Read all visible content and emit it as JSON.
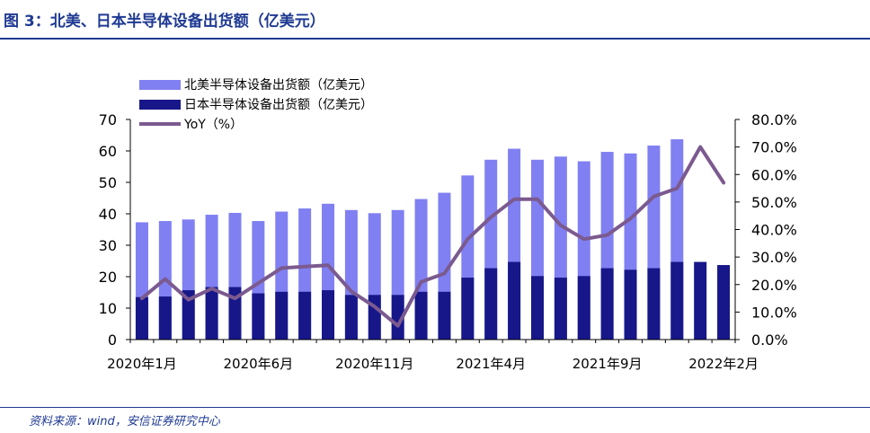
{
  "figure": {
    "title": "图 3：北美、日本半导体设备出货额（亿美元）",
    "source": "资料来源：wind，安信证券研究中心"
  },
  "colors": {
    "north_america": "#8080f2",
    "japan": "#17178a",
    "yoy": "#7b5a8f",
    "title": "#1f3a93",
    "axis": "#000000"
  },
  "chart_data": {
    "type": "bar",
    "stacked": "overlay",
    "x": [
      "2020年1月",
      "2020年2月",
      "2020年3月",
      "2020年4月",
      "2020年5月",
      "2020年6月",
      "2020年7月",
      "2020年8月",
      "2020年9月",
      "2020年10月",
      "2020年11月",
      "2020年12月",
      "2021年1月",
      "2021年2月",
      "2021年3月",
      "2021年4月",
      "2021年5月",
      "2021年6月",
      "2021年7月",
      "2021年8月",
      "2021年9月",
      "2021年10月",
      "2021年11月",
      "2021年12月",
      "2022年1月",
      "2022年2月"
    ],
    "x_tick_labels": [
      {
        "index": 0,
        "label": "2020年1月"
      },
      {
        "index": 5,
        "label": "2020年6月"
      },
      {
        "index": 10,
        "label": "2020年11月"
      },
      {
        "index": 15,
        "label": "2021年4月"
      },
      {
        "index": 20,
        "label": "2021年9月"
      },
      {
        "index": 25,
        "label": "2022年2月"
      }
    ],
    "series": [
      {
        "name": "北美半导体设备出货额（亿美元）",
        "kind": "bar",
        "axis": "left",
        "values": [
          37.3,
          37.7,
          38.2,
          39.7,
          40.3,
          37.7,
          40.7,
          41.7,
          43.2,
          41.2,
          40.2,
          41.2,
          44.7,
          46.7,
          52.2,
          57.2,
          60.7,
          57.2,
          58.2,
          56.7,
          59.7,
          59.2,
          61.7,
          63.7,
          null,
          null
        ]
      },
      {
        "name": "日本半导体设备出货额（亿美元）",
        "kind": "bar",
        "axis": "left",
        "values": [
          13.5,
          13.7,
          15.7,
          16.7,
          16.7,
          14.7,
          15.2,
          15.2,
          15.7,
          14.2,
          14.2,
          14.2,
          15.2,
          15.2,
          19.7,
          22.7,
          24.7,
          20.2,
          19.7,
          20.2,
          22.7,
          22.2,
          22.7,
          24.7,
          24.7,
          23.7
        ]
      },
      {
        "name": "YoY（%）",
        "kind": "line",
        "axis": "right",
        "values": [
          15.0,
          22.0,
          14.5,
          18.5,
          15.0,
          20.5,
          26.0,
          26.5,
          27.0,
          17.5,
          12.0,
          5.0,
          21.0,
          24.0,
          36.5,
          44.5,
          51.0,
          51.0,
          41.5,
          36.5,
          38.0,
          44.0,
          52.0,
          55.0,
          70.0,
          57.0
        ]
      }
    ],
    "y_left": {
      "lim": [
        0,
        70
      ],
      "ticks": [
        0,
        10,
        20,
        30,
        40,
        50,
        60,
        70
      ]
    },
    "y_right": {
      "lim": [
        0,
        80
      ],
      "ticks": [
        "0.0%",
        "10.0%",
        "20.0%",
        "30.0%",
        "40.0%",
        "50.0%",
        "60.0%",
        "70.0%",
        "80.0%"
      ]
    },
    "legend_position": "top-left",
    "grid": false
  }
}
